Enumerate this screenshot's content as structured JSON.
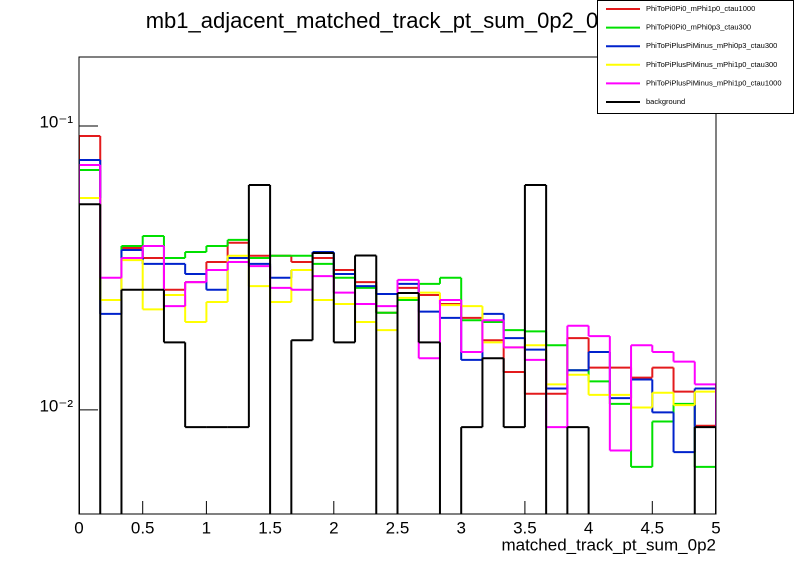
{
  "chart_data": {
    "type": "histogram",
    "title": "mb1_adjacent_matched_track_pt_sum_0p2_0",
    "x_label": "matched_track_pt_sum_0p2",
    "log_y": true,
    "legend": "top-right",
    "bins": [
      0,
      0.1667,
      0.3333,
      0.5,
      0.6667,
      0.8333,
      1,
      1.1667,
      1.3333,
      1.5,
      1.6667,
      1.8333,
      2,
      2.1667,
      2.3333,
      2.5,
      2.6667,
      2.8333,
      3,
      3.1667,
      3.3333,
      3.5,
      3.6667,
      3.8333,
      4,
      4.1667,
      4.3333,
      4.5,
      4.6667,
      4.8333,
      5
    ],
    "xlim": [
      0,
      5
    ],
    "xticks": [
      0,
      0.5,
      1,
      1.5,
      2,
      2.5,
      3,
      3.5,
      4,
      4.5,
      5
    ],
    "ylim": [
      0.0043,
      0.175
    ],
    "yticks": [
      {
        "value": 0.01,
        "label": "10⁻²"
      },
      {
        "value": 0.1,
        "label": "10⁻¹"
      }
    ],
    "series": [
      {
        "name": "PhiToPi0Pi0_mPhi1p0_ctau1000",
        "color": "#e31a1c",
        "values": [
          0.0922,
          0.0244,
          0.0372,
          0.0343,
          0.0265,
          0.0282,
          0.0332,
          0.0388,
          0.0349,
          0.0349,
          0.0332,
          0.0343,
          0.0311,
          0.0282,
          0.022,
          0.0269,
          0.0254,
          0.0236,
          0.0211,
          0.0176,
          0.0136,
          0.0114,
          0.0114,
          0.0179,
          0.0141,
          0.0141,
          0.013,
          0.0141,
          0.0116,
          0.0088
        ]
      },
      {
        "name": "PhiToPi0Pi0_mPhi0p3_ctau300",
        "color": "#00e000",
        "values": [
          0.07,
          0.0244,
          0.0378,
          0.041,
          0.0343,
          0.036,
          0.0378,
          0.0397,
          0.0343,
          0.0349,
          0.0349,
          0.0327,
          0.0292,
          0.0269,
          0.022,
          0.0244,
          0.0278,
          0.0292,
          0.0207,
          0.0204,
          0.0191,
          0.0189,
          0.0169,
          0.0138,
          0.0126,
          0.0105,
          0.0063,
          0.0091,
          0.0105,
          0.0063
        ]
      },
      {
        "name": "PhiToPiPlusPiMinus_mPhi0p3_ctau300",
        "color": "#0022cc",
        "values": [
          0.0759,
          0.0218,
          0.0366,
          0.0327,
          0.0327,
          0.0301,
          0.0265,
          0.0343,
          0.0327,
          0.0292,
          0.0311,
          0.036,
          0.0301,
          0.0273,
          0.0256,
          0.0278,
          0.0222,
          0.0211,
          0.015,
          0.0218,
          0.0179,
          0.0163,
          0.0119,
          0.0138,
          0.016,
          0.011,
          0.0128,
          0.0098,
          0.0071,
          0.0119
        ]
      },
      {
        "name": "PhiToPiPlusPiMinus_mPhi1p0_ctau300",
        "color": "#ffff00",
        "values": [
          0.0558,
          0.0244,
          0.0337,
          0.0226,
          0.0254,
          0.0204,
          0.024,
          0.0349,
          0.0273,
          0.024,
          0.0311,
          0.0244,
          0.0236,
          0.0204,
          0.0191,
          0.0248,
          0.0259,
          0.0234,
          0.0232,
          0.0173,
          0.0166,
          0.0169,
          0.0123,
          0.0133,
          0.0113,
          0.0113,
          0.0102,
          0.0115,
          0.0104,
          0.0116
        ]
      },
      {
        "name": "PhiToPiPlusPiMinus_mPhi1p0_ctau1000",
        "color": "#ff00ff",
        "values": [
          0.0729,
          0.0292,
          0.0343,
          0.0378,
          0.0232,
          0.0282,
          0.0311,
          0.0332,
          0.0321,
          0.0269,
          0.0265,
          0.0296,
          0.0259,
          0.0236,
          0.0232,
          0.0287,
          0.0152,
          0.0244,
          0.016,
          0.0207,
          0.0166,
          0.015,
          0.0087,
          0.0198,
          0.0182,
          0.0072,
          0.0169,
          0.016,
          0.0148,
          0.0123
        ]
      },
      {
        "name": "background",
        "color": "#000000",
        "values": [
          0.053,
          0,
          0.0265,
          0.0265,
          0.0173,
          0.0087,
          0.0087,
          0.0087,
          0.062,
          0,
          0.0176,
          0.0357,
          0.0173,
          0.035,
          0,
          0.0258,
          0.0173,
          0,
          0.0087,
          0.0152,
          0.0087,
          0.062,
          0,
          0.0087,
          0,
          0,
          0,
          0,
          0,
          0.0087
        ]
      }
    ]
  }
}
